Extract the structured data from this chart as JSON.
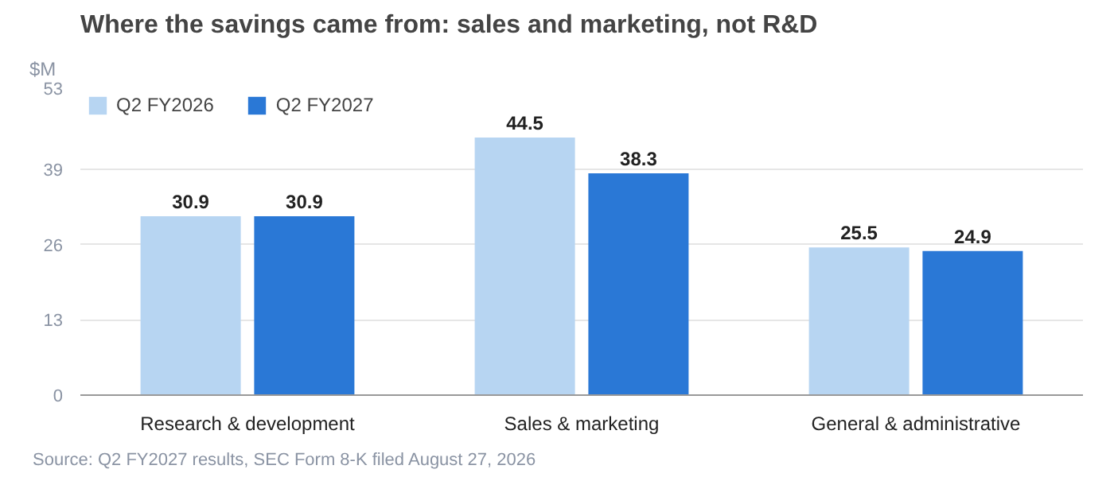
{
  "chart_data": {
    "type": "bar",
    "title": "Where the savings came from: sales and marketing, not R&D",
    "ylabel": "$M",
    "categories": [
      "Research & development",
      "Sales & marketing",
      "General & administrative"
    ],
    "series": [
      {
        "name": "Q2 FY2026",
        "color": "#b7d5f2",
        "values": [
          30.9,
          44.5,
          25.5
        ]
      },
      {
        "name": "Q2 FY2027",
        "color": "#2a78d6",
        "values": [
          30.9,
          38.3,
          24.9
        ]
      }
    ],
    "ylim": [
      0,
      53
    ],
    "yticks": [
      0,
      13,
      26,
      39,
      53
    ],
    "grid": "y",
    "legend": "top left",
    "data_labels": true,
    "annotations": [
      "Source: Q2 FY2027 results, SEC Form 8-K filed August 27, 2026"
    ]
  }
}
